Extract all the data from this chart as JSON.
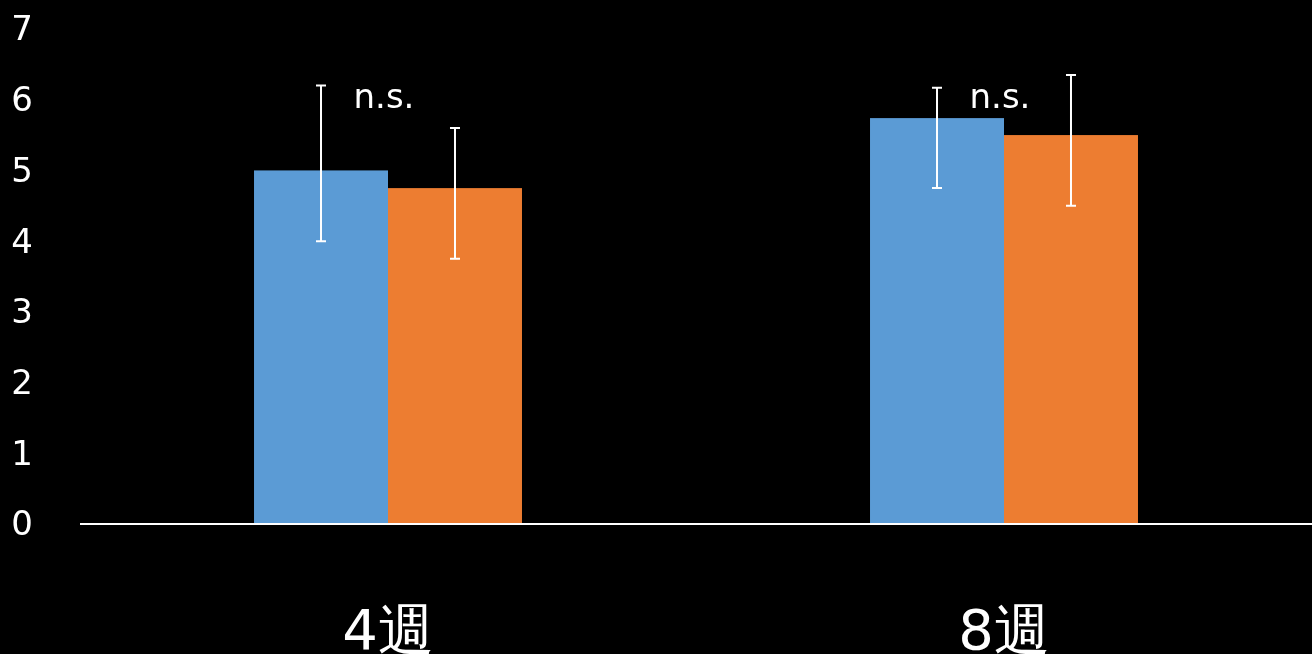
{
  "chart_data": {
    "type": "bar",
    "categories": [
      "4週",
      "8週"
    ],
    "series": [
      {
        "color": "#5b9bd5",
        "values": [
          5.0,
          5.74
        ],
        "errors": [
          [
            4.0,
            6.2
          ],
          [
            4.75,
            6.17
          ]
        ]
      },
      {
        "color": "#ed7d31",
        "values": [
          4.75,
          5.5
        ],
        "errors": [
          [
            3.75,
            5.6
          ],
          [
            4.5,
            6.35
          ]
        ]
      }
    ],
    "ylim": [
      0,
      7
    ],
    "yticks": [
      0,
      1,
      2,
      3,
      4,
      5,
      6,
      7
    ],
    "grid": false,
    "annotations": [
      "n.s.",
      "n.s."
    ]
  }
}
